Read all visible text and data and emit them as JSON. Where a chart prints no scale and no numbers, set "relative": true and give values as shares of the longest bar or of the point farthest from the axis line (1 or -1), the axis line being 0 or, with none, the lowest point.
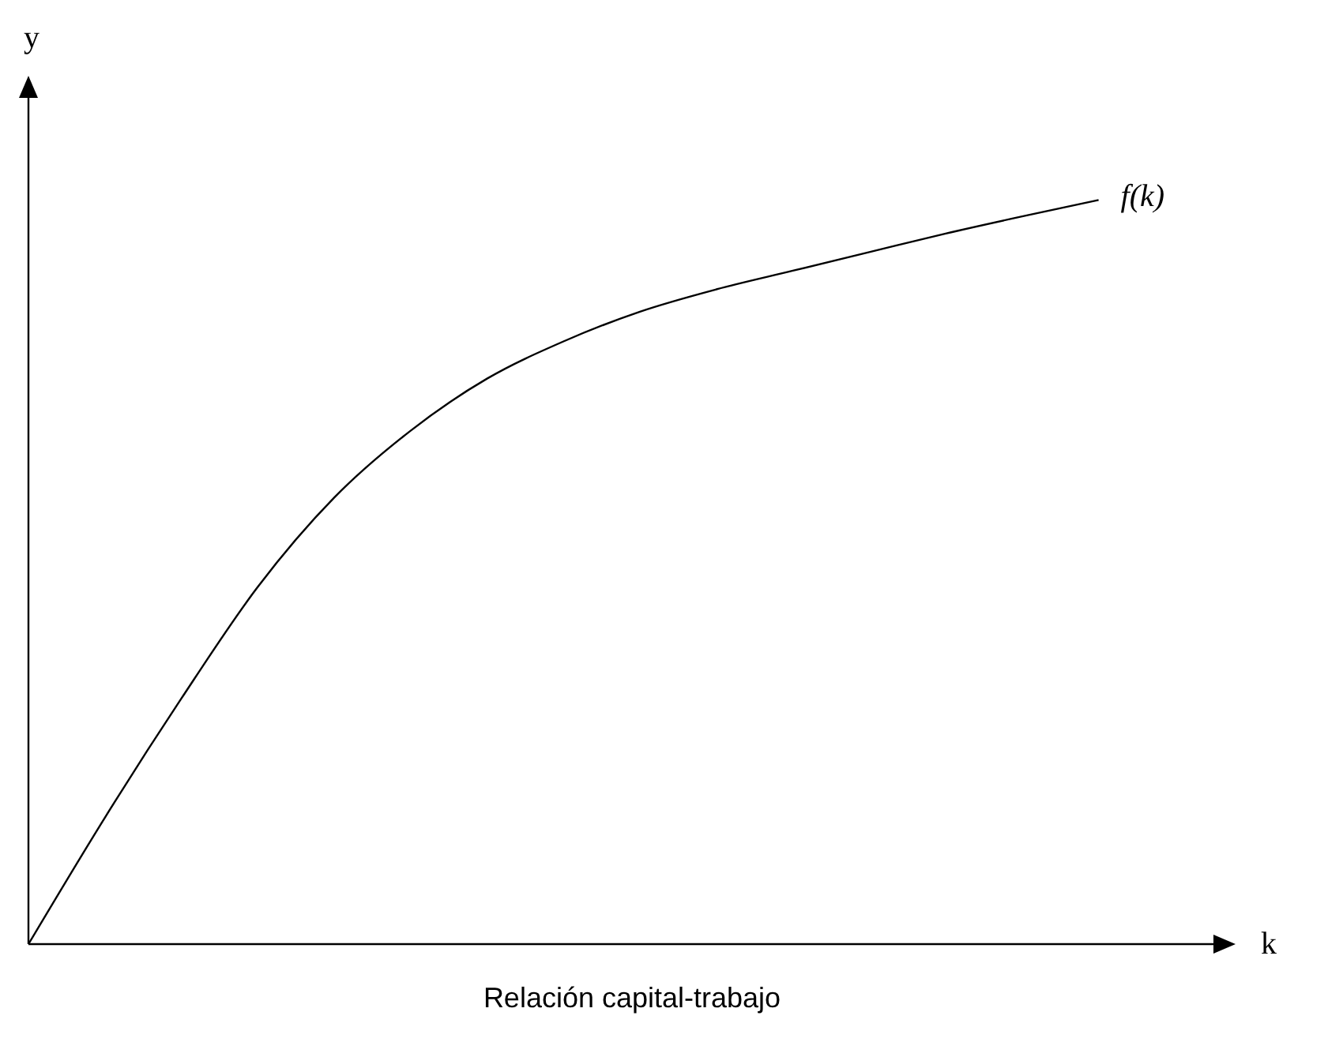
{
  "chart_data": {
    "type": "line",
    "relative": true,
    "xlabel": "Relación capital-trabajo",
    "ylabel": "y",
    "annotations": [
      "k"
    ],
    "categories": [
      null,
      null,
      null,
      null,
      null,
      null,
      null,
      null,
      null,
      null,
      null,
      null,
      null,
      null,
      null
    ],
    "series": [
      {
        "name": "f(k)",
        "color": "#000000",
        "values": [
          0,
          0.17,
          0.33,
          0.48,
          0.6,
          0.69,
          0.76,
          0.81,
          0.85,
          0.88,
          0.905,
          0.93,
          0.955,
          0.978,
          1
        ]
      }
    ],
    "grid": false,
    "legend": false,
    "marker": "none",
    "line_style": "solid"
  }
}
